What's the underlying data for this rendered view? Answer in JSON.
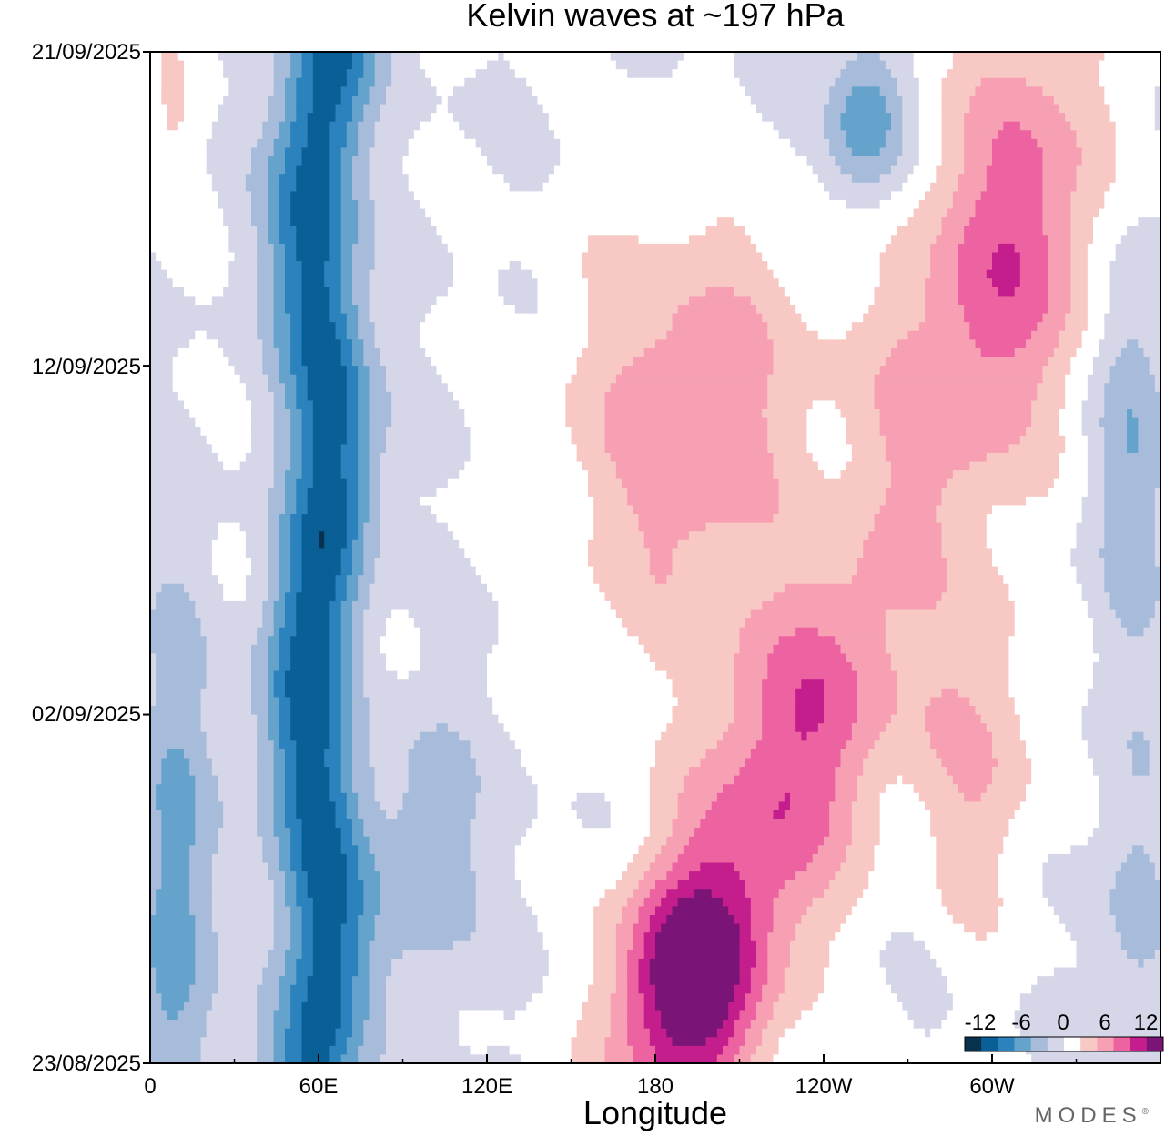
{
  "chart_data": {
    "type": "heatmap",
    "title": "Kelvin waves at ~197 hPa",
    "xlabel": "Longitude",
    "ylabel": "",
    "x_ticks": [
      "0",
      "60E",
      "120E",
      "180",
      "120W",
      "60W"
    ],
    "x_tick_values": [
      0,
      60,
      120,
      180,
      240,
      300
    ],
    "xlim": [
      0,
      360
    ],
    "y_ticks": [
      "21/09/2025",
      "12/09/2025",
      "02/09/2025",
      "23/08/2025"
    ],
    "y_tick_days": [
      29,
      20,
      10,
      0
    ],
    "ylim": [
      0,
      29
    ],
    "colorbar": {
      "ticks": [
        "-12",
        "-6",
        "0",
        "6",
        "12"
      ],
      "tick_values": [
        -12,
        -6,
        0,
        6,
        12
      ],
      "levels": [
        -15,
        -12,
        -9,
        -6,
        -3,
        0,
        3,
        6,
        9,
        12,
        15
      ],
      "colors": [
        "#08304f",
        "#0a5f96",
        "#2b82bd",
        "#66a3cc",
        "#a6bcda",
        "#d5d6e8",
        "#ffffff",
        "#f8c9c4",
        "#f7a0b4",
        "#ed62a1",
        "#c41d8c",
        "#7a1477"
      ]
    },
    "features": [
      {
        "name": "negative anomaly band",
        "lon_center_start": 58,
        "lon_center_end": 62,
        "days": [
          0,
          29
        ],
        "peak": -14
      },
      {
        "name": "eastward positive anomaly",
        "lon_start": 185,
        "lon_end": 320,
        "days": [
          0,
          26
        ],
        "peak": 13
      },
      {
        "name": "negative anomaly pocket",
        "lon": 255,
        "day": 27,
        "peak": -9
      }
    ]
  },
  "branding": {
    "logo_text": "MODES",
    "mark": "®"
  }
}
